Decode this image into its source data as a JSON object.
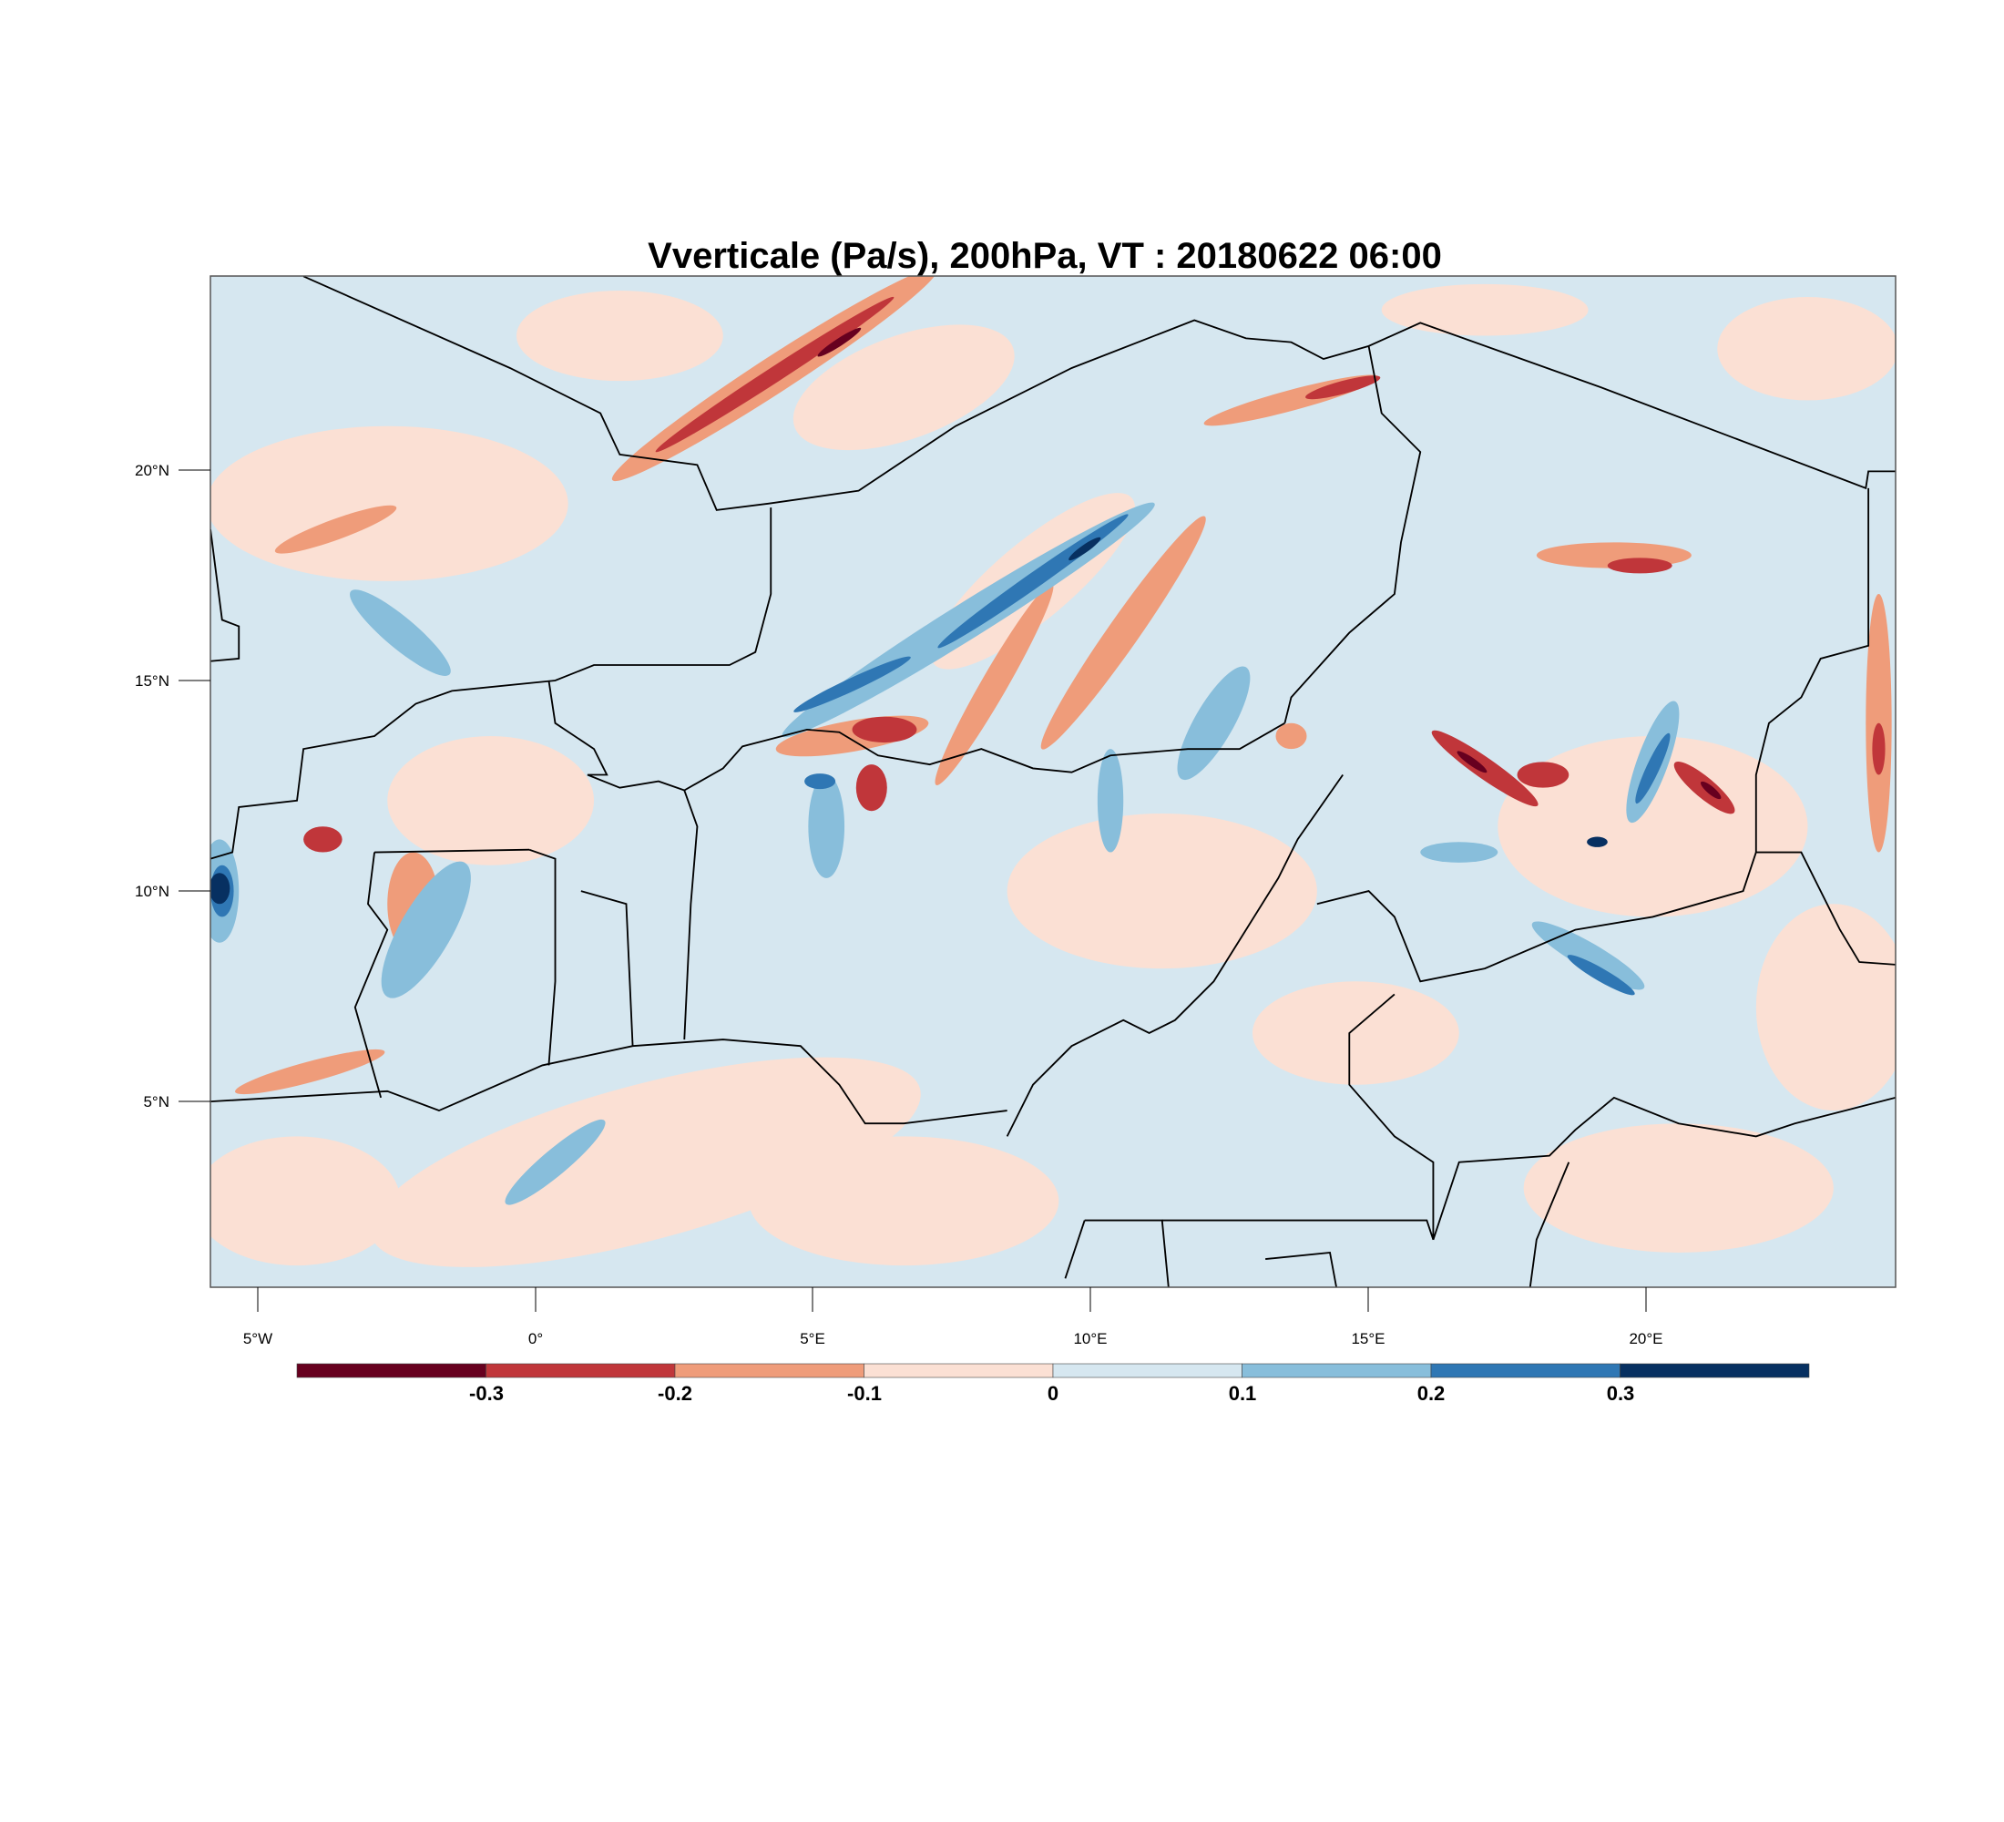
{
  "chart_data": {
    "type": "heatmap",
    "subtype": "filled-contour-map",
    "title": "Vverticale (Pa/s), 200hPa, VT : 20180622  06:00",
    "variable": "Vertical velocity",
    "units": "Pa/s",
    "level": "200hPa",
    "valid_time": "20180622 06:00",
    "x_ticks": [
      "5°W",
      "0°",
      "5°E",
      "10°E",
      "15°E",
      "20°E"
    ],
    "x_tick_values": [
      -5,
      0,
      5,
      10,
      15,
      20
    ],
    "y_ticks": [
      "5°N",
      "10°N",
      "15°N",
      "20°N"
    ],
    "y_tick_values": [
      5,
      10,
      15,
      20
    ],
    "xlim": [
      -5.9,
      24.5
    ],
    "ylim": [
      0.6,
      24.6
    ],
    "colorbar": {
      "labels": [
        "-0.3",
        "-0.2",
        "-0.1",
        "0",
        "0.1",
        "0.2",
        "0.3"
      ],
      "levels": [
        -0.3,
        -0.2,
        -0.1,
        0,
        0.1,
        0.2,
        0.3
      ],
      "colors": [
        "#67001f",
        "#c0363a",
        "#ef9c7a",
        "#fbe0d4",
        "#d6e7f0",
        "#88bedb",
        "#2f77b4",
        "#073061"
      ]
    }
  }
}
